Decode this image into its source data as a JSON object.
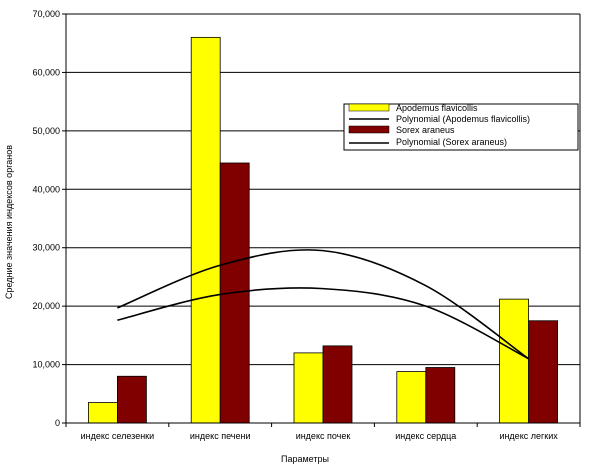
{
  "chart_data": {
    "type": "bar",
    "categories": [
      "индекс селезенки",
      "индекс печени",
      "индекс почек",
      "индекс сердца",
      "индекс легких"
    ],
    "series": [
      {
        "name": "Apodemus flavicollis",
        "values": [
          3.5,
          66.0,
          12.0,
          8.8,
          21.2
        ],
        "color": "#ffff00"
      },
      {
        "name": "Sorex araneus",
        "values": [
          8.0,
          44.5,
          13.2,
          9.5,
          17.5
        ],
        "color": "#800000"
      }
    ],
    "trendlines": [
      {
        "name": "Polynomial (Apodemus flavicollis)",
        "points": [
          19.7,
          27.0,
          29.5,
          23.5,
          11.0
        ],
        "color": "#000000"
      },
      {
        "name": "Polynomial (Sorex araneus)",
        "points": [
          17.6,
          22.0,
          23.0,
          20.0,
          11.0
        ],
        "color": "#000000"
      }
    ],
    "yticks": [
      "0",
      "10,000",
      "20,000",
      "30,000",
      "40,000",
      "50,000",
      "60,000",
      "70,000"
    ],
    "ylim": [
      0,
      70
    ],
    "xlabel": "Параметры",
    "ylabel": "Средние значения индексов органов",
    "grid": true,
    "legend_position": "right"
  }
}
